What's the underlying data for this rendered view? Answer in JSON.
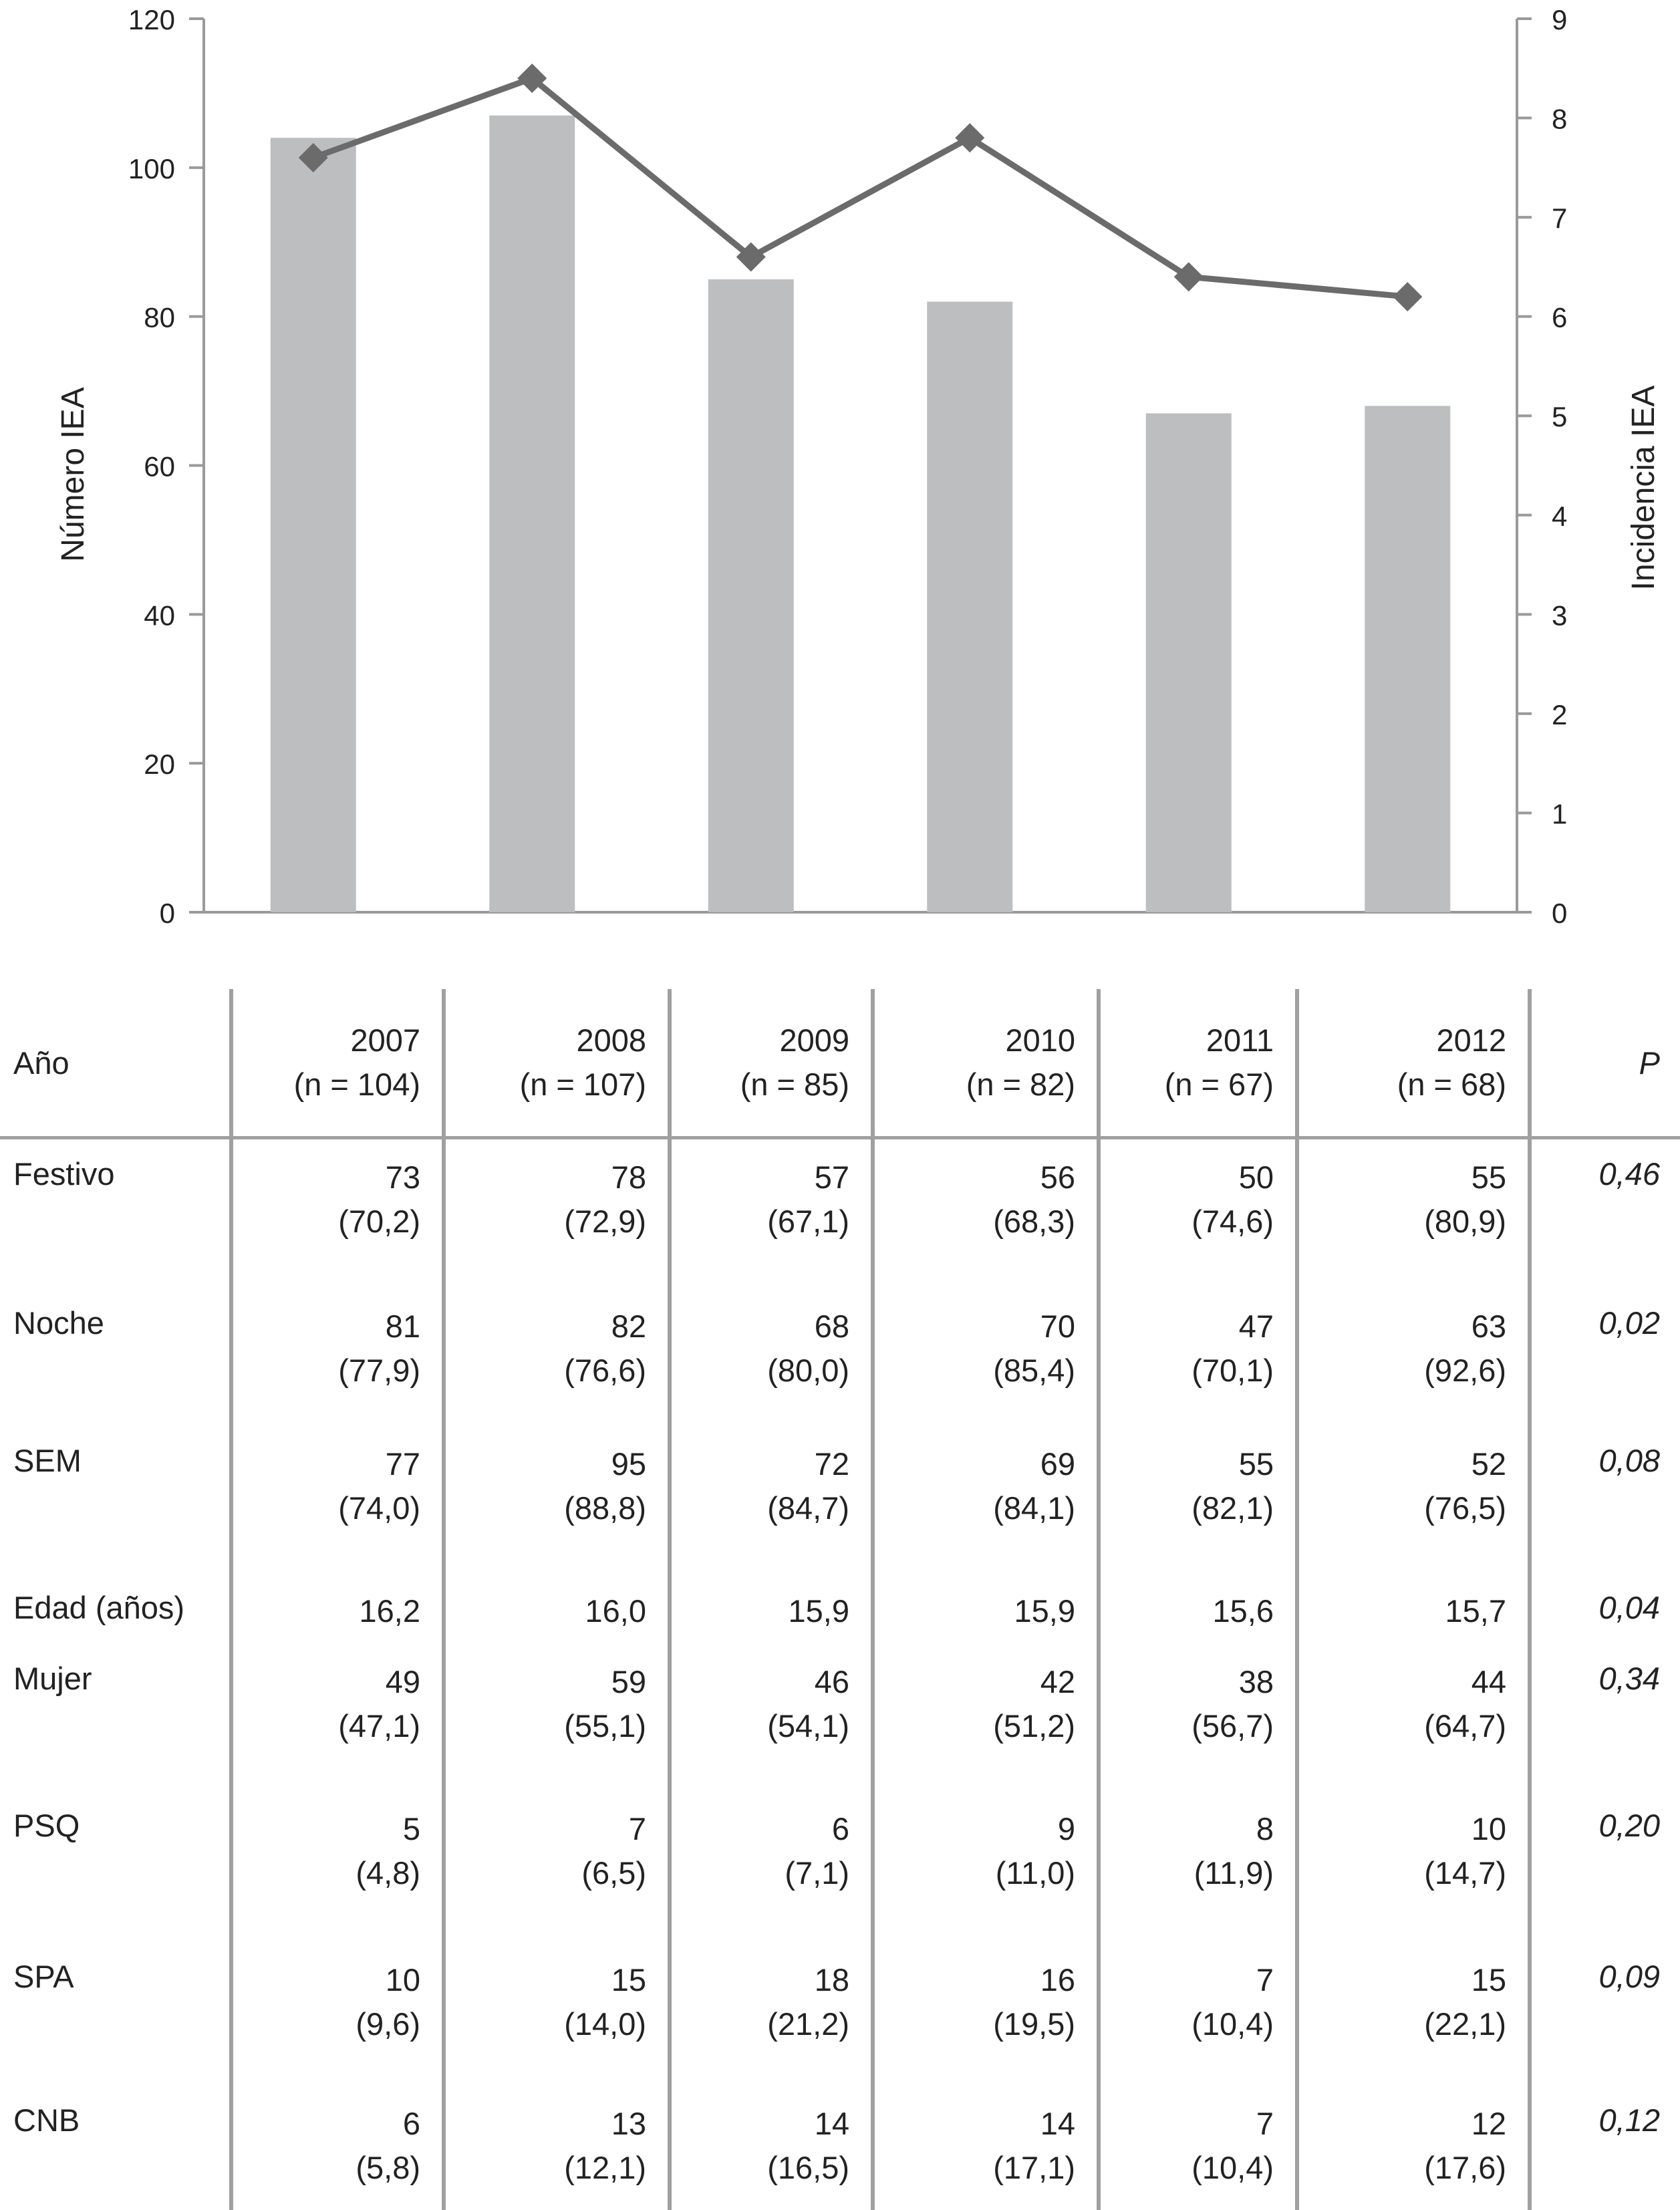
{
  "chart_data": {
    "type": "bar+line",
    "categories": [
      "2007",
      "2008",
      "2009",
      "2010",
      "2011",
      "2012"
    ],
    "series": [
      {
        "axis": "left",
        "type": "bar",
        "color": "#bdbec0",
        "values": [
          104,
          107,
          85,
          82,
          67,
          68
        ]
      },
      {
        "axis": "right",
        "type": "line",
        "color": "#6b6b6b",
        "marker": "diamond",
        "values": [
          7.6,
          8.4,
          6.6,
          7.8,
          6.4,
          6.2
        ]
      }
    ],
    "ylabel": "Número IEA",
    "y2label": "Incidencia IEA",
    "ylim": [
      0,
      120
    ],
    "y2lim": [
      0,
      9
    ],
    "yticks": [
      "0",
      "20",
      "40",
      "60",
      "80",
      "100",
      "120"
    ],
    "y2ticks": [
      "0",
      "1",
      "2",
      "3",
      "4",
      "5",
      "6",
      "7",
      "8",
      "9"
    ],
    "grid": false
  },
  "table": {
    "header": {
      "label": "Año",
      "years": [
        {
          "year": "2007",
          "n": "(n = 104)"
        },
        {
          "year": "2008",
          "n": "(n = 107)"
        },
        {
          "year": "2009",
          "n": "(n = 85)"
        },
        {
          "year": "2010",
          "n": "(n = 82)"
        },
        {
          "year": "2011",
          "n": "(n = 67)"
        },
        {
          "year": "2012",
          "n": "(n = 68)"
        }
      ],
      "p_label": "P"
    },
    "rows": [
      {
        "label": "Festivo",
        "values": [
          [
            "73",
            "(70,2)"
          ],
          [
            "78",
            "(72,9)"
          ],
          [
            "57",
            "(67,1)"
          ],
          [
            "56",
            "(68,3)"
          ],
          [
            "50",
            "(74,6)"
          ],
          [
            "55",
            "(80,9)"
          ]
        ],
        "p": "0,46"
      },
      {
        "label": "Noche",
        "values": [
          [
            "81",
            "(77,9)"
          ],
          [
            "82",
            "(76,6)"
          ],
          [
            "68",
            "(80,0)"
          ],
          [
            "70",
            "(85,4)"
          ],
          [
            "47",
            "(70,1)"
          ],
          [
            "63",
            "(92,6)"
          ]
        ],
        "p": "0,02"
      },
      {
        "label": "SEM",
        "values": [
          [
            "77",
            "(74,0)"
          ],
          [
            "95",
            "(88,8)"
          ],
          [
            "72",
            "(84,7)"
          ],
          [
            "69",
            "(84,1)"
          ],
          [
            "55",
            "(82,1)"
          ],
          [
            "52",
            "(76,5)"
          ]
        ],
        "p": "0,08"
      },
      {
        "label": "Edad (años)",
        "values": [
          [
            "16,2"
          ],
          [
            "16,0"
          ],
          [
            "15,9"
          ],
          [
            "15,9"
          ],
          [
            "15,6"
          ],
          [
            "15,7"
          ]
        ],
        "p": "0,04"
      },
      {
        "label": "Mujer",
        "values": [
          [
            "49",
            "(47,1)"
          ],
          [
            "59",
            "(55,1)"
          ],
          [
            "46",
            "(54,1)"
          ],
          [
            "42",
            "(51,2)"
          ],
          [
            "38",
            "(56,7)"
          ],
          [
            "44",
            "(64,7)"
          ]
        ],
        "p": "0,34"
      },
      {
        "label": "PSQ",
        "values": [
          [
            "5",
            "(4,8)"
          ],
          [
            "7",
            "(6,5)"
          ],
          [
            "6",
            "(7,1)"
          ],
          [
            "9",
            "(11,0)"
          ],
          [
            "8",
            "(11,9)"
          ],
          [
            "10",
            "(14,7)"
          ]
        ],
        "p": "0,20"
      },
      {
        "label": "SPA",
        "values": [
          [
            "10",
            "(9,6)"
          ],
          [
            "15",
            "(14,0)"
          ],
          [
            "18",
            "(21,2)"
          ],
          [
            "16",
            "(19,5)"
          ],
          [
            "7",
            "(10,4)"
          ],
          [
            "15",
            "(22,1)"
          ]
        ],
        "p": "0,09"
      },
      {
        "label": "CNB",
        "values": [
          [
            "6",
            "(5,8)"
          ],
          [
            "13",
            "(12,1)"
          ],
          [
            "14",
            "(16,5)"
          ],
          [
            "14",
            "(17,1)"
          ],
          [
            "7",
            "(10,4)"
          ],
          [
            "12",
            "(17,6)"
          ]
        ],
        "p": "0,12"
      }
    ]
  }
}
